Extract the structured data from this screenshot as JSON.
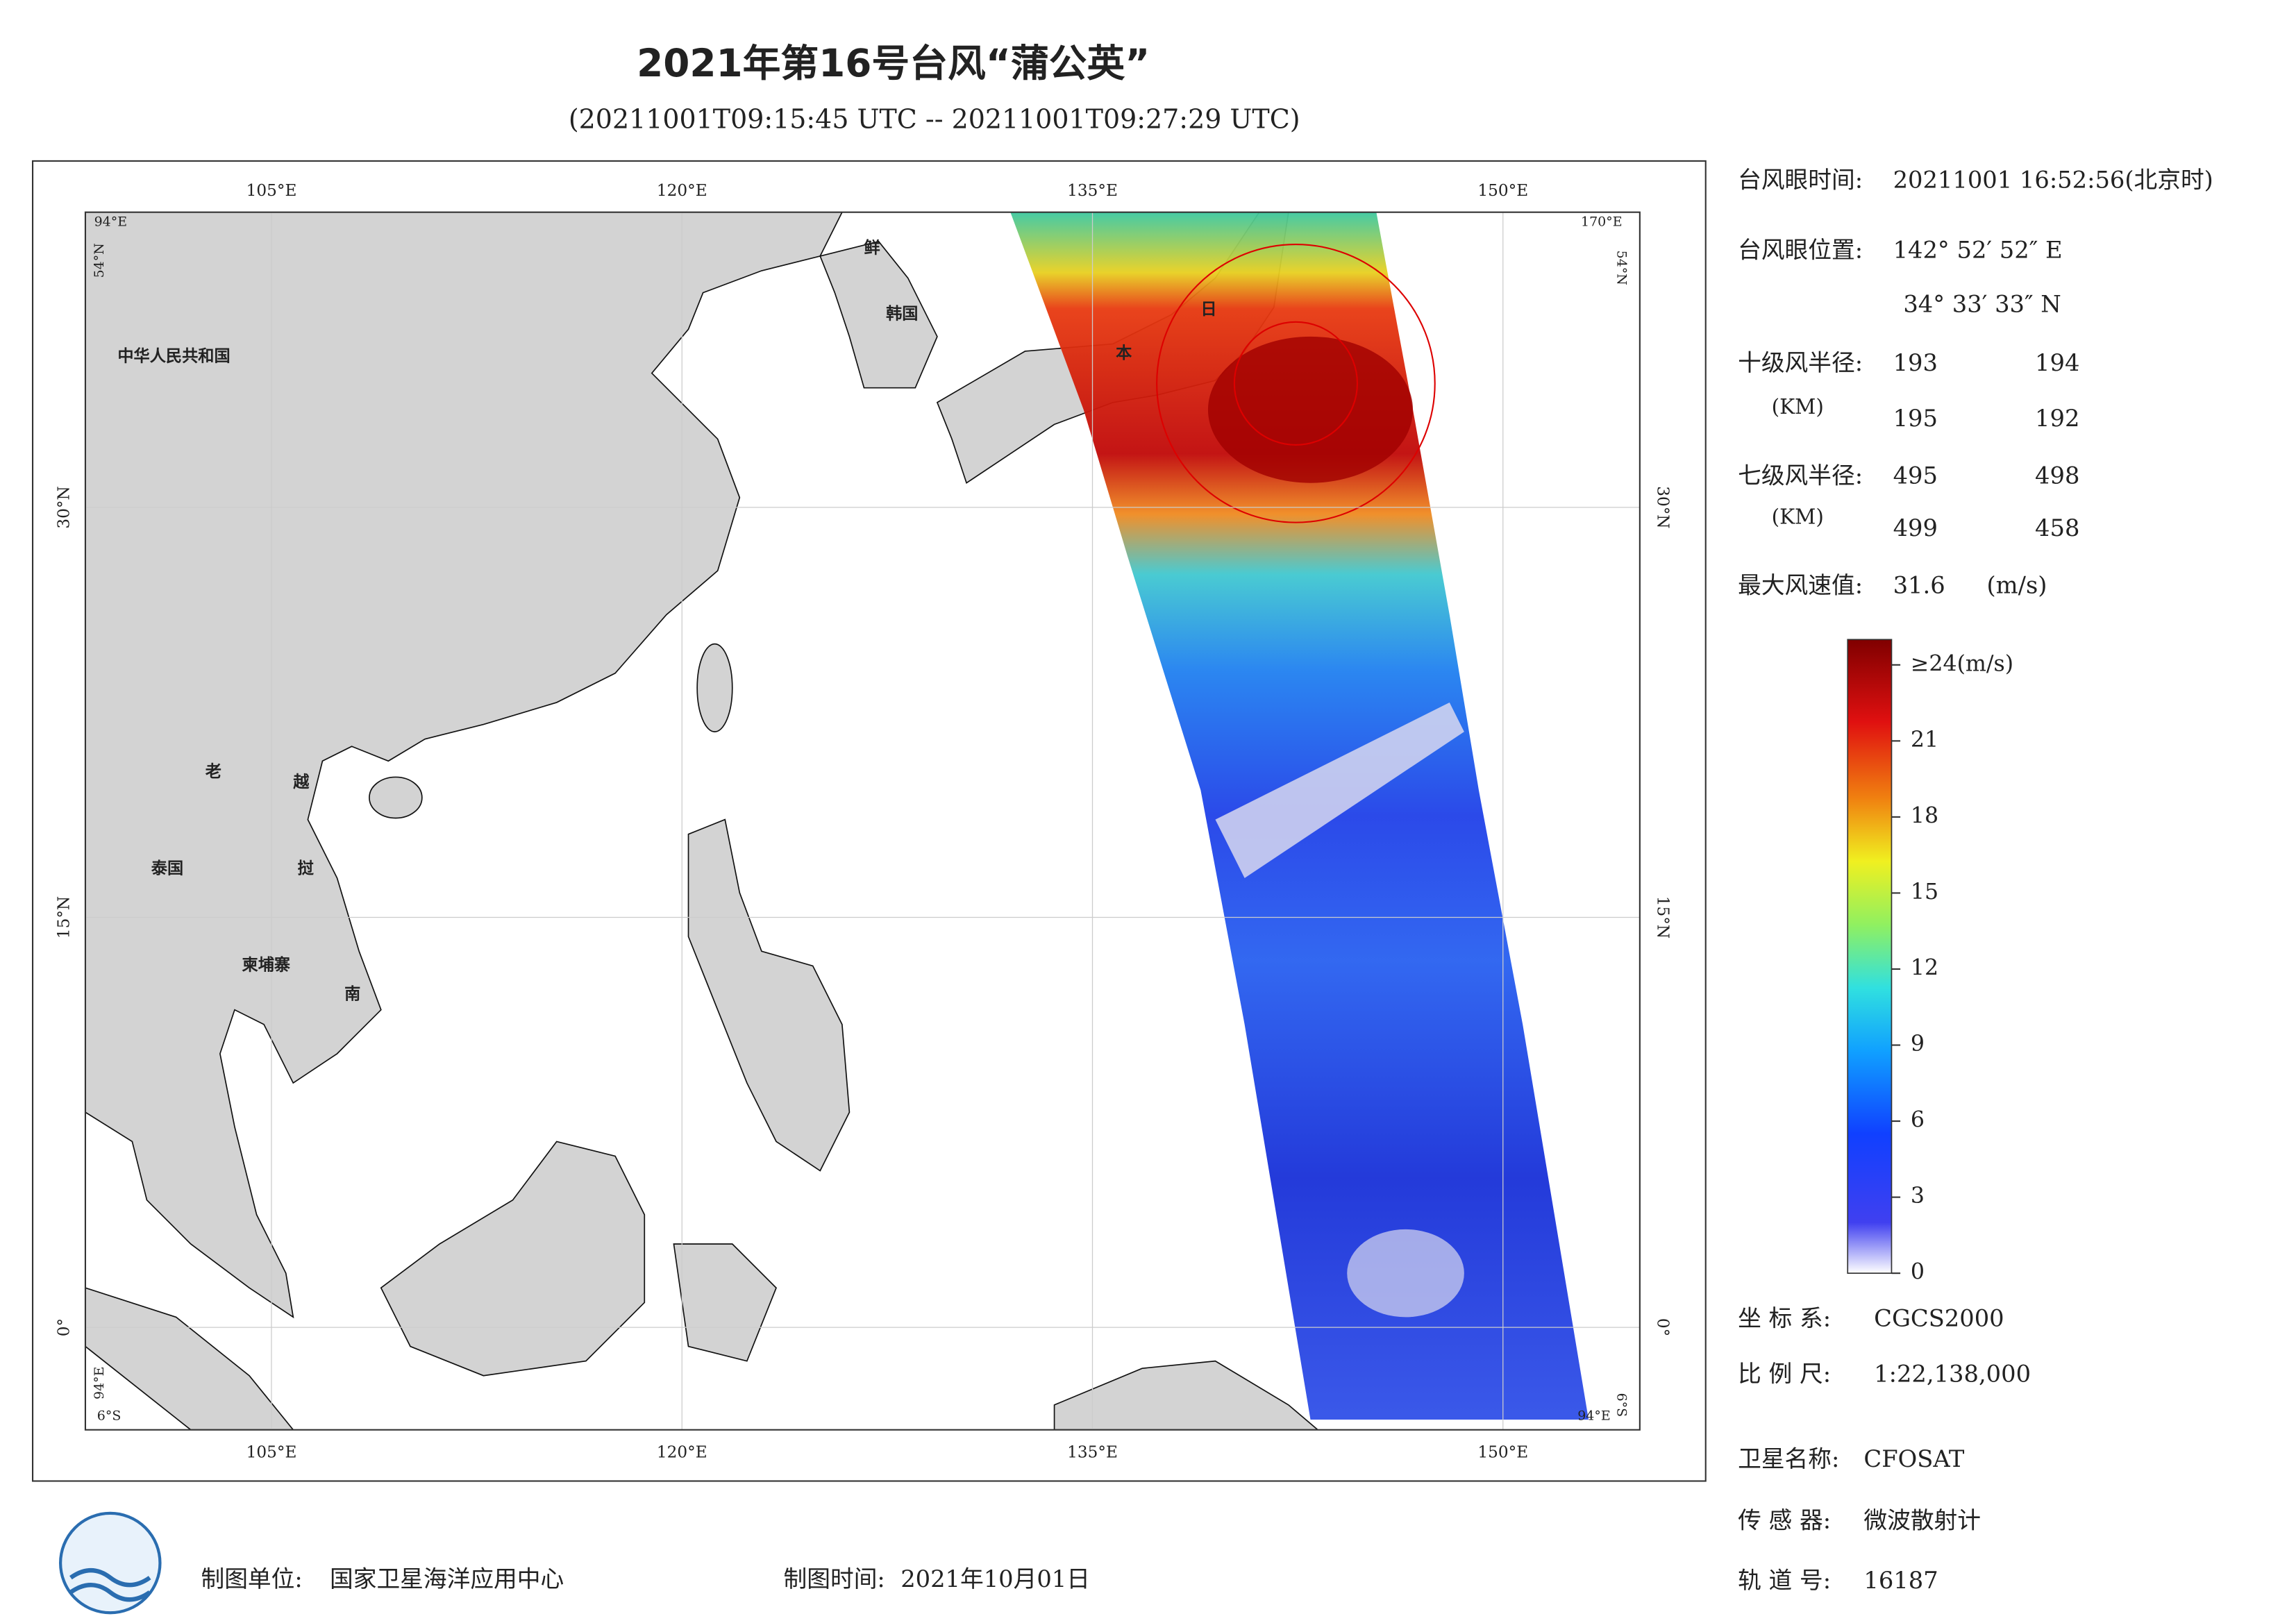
{
  "header": {
    "title": "2021年第16号台风“蒲公英”",
    "subtitle": "(20211001T09:15:45 UTC -- 20211001T09:27:29 UTC)"
  },
  "map": {
    "xlim": [
      98.2,
      155
    ],
    "ylim": [
      -3.75,
      40.8
    ],
    "xticks": [
      {
        "value": 105,
        "label": "105°E"
      },
      {
        "value": 120,
        "label": "120°E"
      },
      {
        "value": 135,
        "label": "135°E"
      },
      {
        "value": 150,
        "label": "150°E"
      }
    ],
    "yticks": [
      {
        "value": 0,
        "label": "0°"
      },
      {
        "value": 15,
        "label": "15°N"
      },
      {
        "value": 30,
        "label": "30°N"
      }
    ],
    "corner_labels": [
      "94°E",
      "54°N",
      "170°E",
      "54°N",
      "6°S",
      "94°E",
      "6°S",
      "94°E"
    ],
    "place_labels": [
      "中华人民共和国",
      "老",
      "越",
      "泰国",
      "挝",
      "柬埔寨",
      "南",
      "鲜",
      "韩国",
      "日",
      "本"
    ]
  },
  "info": {
    "eye_time_label": "台风眼时间:",
    "eye_time": "20211001 16:52:56(北京时)",
    "eye_position_label": "台风眼位置:",
    "eye_lon": "142° 52′ 52″ E",
    "eye_lat": "34° 33′ 33″ N",
    "r10_label": "十级风半径:",
    "r10_unit": "(KM)",
    "r10": [
      193,
      194,
      195,
      192
    ],
    "r7_label": "七级风半径:",
    "r7_unit": "(KM)",
    "r7": [
      495,
      498,
      499,
      458
    ],
    "max_wind_label": "最大风速值:",
    "max_wind": 31.6,
    "max_wind_unit": "(m/s)",
    "crs_label": "坐 标 系:",
    "crs": "CGCS2000",
    "scale_label": "比 例 尺:",
    "scale": "1:22,138,000",
    "satellite_label": "卫星名称:",
    "satellite": "CFOSAT",
    "sensor_label": "传 感 器:",
    "sensor": "微波散射计",
    "orbit_label": "轨 道 号:",
    "orbit": 16187
  },
  "colorbar": {
    "lim": [
      0,
      25
    ],
    "ticks": [
      0,
      3,
      6,
      9,
      12,
      15,
      18,
      21,
      {
        "value": 24,
        "label": "≥24(m/s)"
      }
    ]
  },
  "footer": {
    "producer_label": "制图单位:",
    "producer": "国家卫星海洋应用中心",
    "date_label": "制图时间:",
    "date": "2021年10月01日"
  }
}
